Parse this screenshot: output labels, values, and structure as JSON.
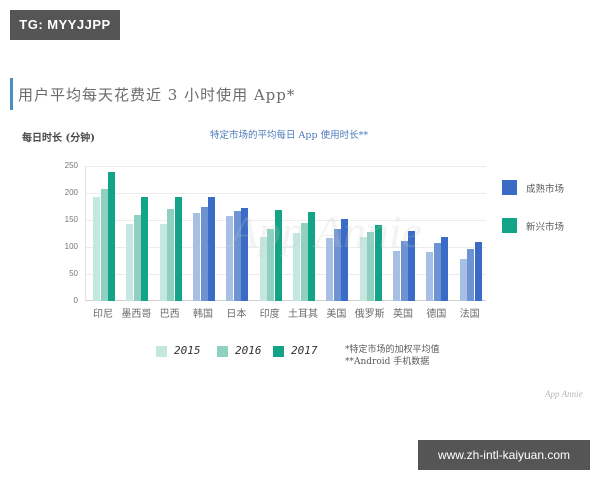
{
  "badges": {
    "top_left": "TG: MYYJJPP",
    "bottom_right": "www.zh-intl-kaiyuan.com"
  },
  "header": {
    "title": "用户平均每天花费近 3 小时使用 App*",
    "ylabel": "每日时长 (分钟)",
    "subtitle": "特定市场的平均每日 App 使用时长**"
  },
  "legend": {
    "markets": [
      {
        "label": "成熟市场",
        "color": "#3a6bc6"
      },
      {
        "label": "新兴市场",
        "color": "#13a387"
      }
    ],
    "years": [
      {
        "label": "2015",
        "color": "#c4e8e0"
      },
      {
        "label": "2016",
        "color": "#8fd0c0"
      },
      {
        "label": "2017",
        "color": "#13a387"
      }
    ]
  },
  "notes": {
    "line1": "*特定市场的加权平均值",
    "line2": "**Android 手机数据"
  },
  "watermark": "App Annie",
  "source_logo": "App Annie",
  "colors": {
    "emerging": [
      "#c4e8e0",
      "#8fd0c0",
      "#13a387"
    ],
    "mature": [
      "#a8bfe4",
      "#6e93d2",
      "#3a6bc6"
    ]
  },
  "chart_data": {
    "type": "bar",
    "title": "特定市场的平均每日 App 使用时长**",
    "xlabel": "",
    "ylabel": "每日时长 (分钟)",
    "ylim": [
      0,
      250
    ],
    "yticks": [
      0,
      50,
      100,
      150,
      200,
      250
    ],
    "grid": true,
    "legend_position": "right / bottom",
    "categories": [
      "印尼",
      "墨西哥",
      "巴西",
      "韩国",
      "日本",
      "印度",
      "土耳其",
      "美国",
      "俄罗斯",
      "英国",
      "德国",
      "法国"
    ],
    "market_type": [
      "新兴市场",
      "新兴市场",
      "新兴市场",
      "成熟市场",
      "成熟市场",
      "新兴市场",
      "新兴市场",
      "成熟市场",
      "新兴市场",
      "成熟市场",
      "成熟市场",
      "成熟市场"
    ],
    "series": [
      {
        "name": "2015",
        "values": [
          192,
          143,
          143,
          163,
          158,
          118,
          126,
          117,
          119,
          92,
          90,
          77
        ]
      },
      {
        "name": "2016",
        "values": [
          208,
          160,
          170,
          175,
          166,
          133,
          145,
          133,
          127,
          111,
          107,
          97
        ]
      },
      {
        "name": "2017",
        "values": [
          238,
          192,
          192,
          192,
          172,
          168,
          165,
          151,
          140,
          129,
          118,
          109
        ]
      }
    ]
  }
}
